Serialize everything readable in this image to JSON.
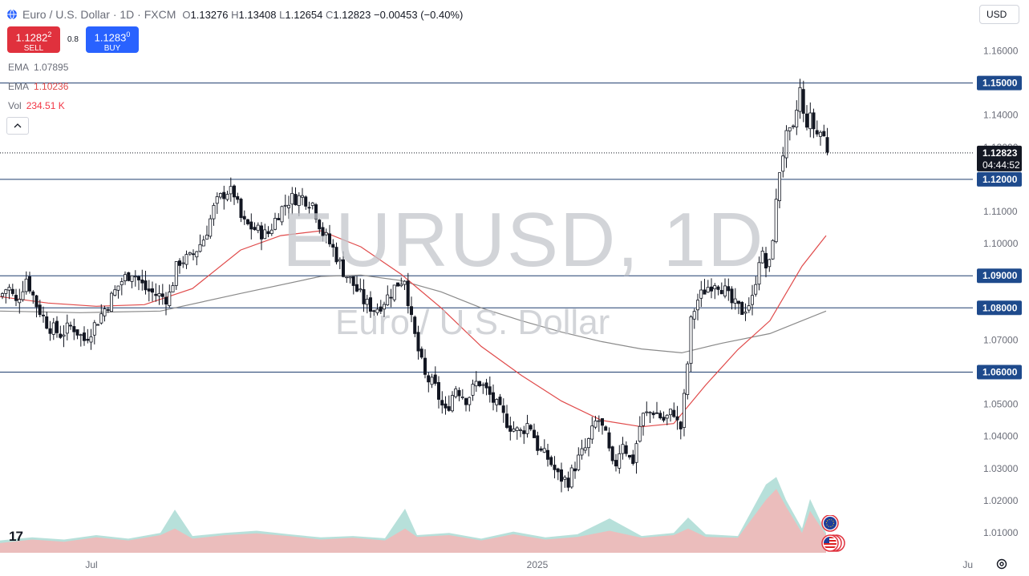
{
  "header": {
    "title": "Euro / U.S. Dollar · 1D · FXCM",
    "o_label": "O",
    "o": "1.13276",
    "h_label": "H",
    "h": "1.13408",
    "l_label": "L",
    "l": "1.12654",
    "c_label": "C",
    "c": "1.12823",
    "change": "−0.00453 (−0.40%)"
  },
  "trade": {
    "sell_price": "1.1282",
    "sell_sup": "2",
    "sell_label": "SELL",
    "spread": "0.8",
    "buy_price": "1.1283",
    "buy_sup": "0",
    "buy_label": "BUY"
  },
  "indicators": {
    "ema1_label": "EMA",
    "ema1_value": "1.07895",
    "ema2_label": "EMA",
    "ema2_value": "1.10236",
    "vol_label": "Vol",
    "vol_value": "234.51 K"
  },
  "currency_button": "USD",
  "watermark": {
    "symbol": "EURUSD, 1D",
    "name": "Euro / U.S. Dollar"
  },
  "logo_text": "17",
  "colors": {
    "up": "#131722",
    "down": "#131722",
    "ema_fast": "#e04a4a",
    "ema_slow": "#8a8a8a",
    "hline": "#1e3d6e",
    "label_bg": "#1e4a8c",
    "price_tag_bg": "#131722",
    "vol_up": "#aadbd4",
    "vol_down": "#f4b6b6"
  },
  "chart_data": {
    "type": "candlestick",
    "x_axis": {
      "ticks": [
        "Jul",
        "2025",
        "Ju"
      ]
    },
    "y_axis": {
      "range": [
        1.005,
        1.165
      ],
      "ticks": [
        "1.16000",
        "1.15000",
        "1.14000",
        "1.13000",
        "1.12000",
        "1.11000",
        "1.10000",
        "1.09000",
        "1.08000",
        "1.07000",
        "1.06000",
        "1.05000",
        "1.04000",
        "1.03000",
        "1.02000",
        "1.01000"
      ]
    },
    "horizontal_lines": [
      {
        "value": 1.15,
        "label": "1.15000"
      },
      {
        "value": 1.12,
        "label": "1.12000"
      },
      {
        "value": 1.09,
        "label": "1.09000"
      },
      {
        "value": 1.08,
        "label": "1.08000"
      },
      {
        "value": 1.06,
        "label": "1.06000"
      }
    ],
    "current_price": {
      "value": 1.12823,
      "label": "1.12823",
      "countdown": "04:44:52"
    },
    "ohlc_path_closes": [
      [
        0,
        1.0835
      ],
      [
        10,
        1.0868
      ],
      [
        20,
        1.0815
      ],
      [
        33,
        1.0895
      ],
      [
        45,
        1.0812
      ],
      [
        60,
        1.0745
      ],
      [
        75,
        1.0718
      ],
      [
        90,
        1.0745
      ],
      [
        105,
        1.07
      ],
      [
        120,
        1.0755
      ],
      [
        135,
        1.0815
      ],
      [
        150,
        1.088
      ],
      [
        165,
        1.0915
      ],
      [
        180,
        1.086
      ],
      [
        195,
        1.084
      ],
      [
        210,
        1.083
      ],
      [
        222,
        1.0945
      ],
      [
        238,
        1.0955
      ],
      [
        255,
        1.102
      ],
      [
        268,
        1.112
      ],
      [
        282,
        1.1165
      ],
      [
        292,
        1.1155
      ],
      [
        302,
        1.1065
      ],
      [
        318,
        1.1045
      ],
      [
        333,
        1.1025
      ],
      [
        348,
        1.11
      ],
      [
        362,
        1.114
      ],
      [
        377,
        1.1145
      ],
      [
        390,
        1.1125
      ],
      [
        402,
        1.1035
      ],
      [
        415,
        1.0985
      ],
      [
        428,
        1.0915
      ],
      [
        440,
        1.0875
      ],
      [
        455,
        1.0815
      ],
      [
        468,
        1.0795
      ],
      [
        482,
        1.083
      ],
      [
        495,
        1.0875
      ],
      [
        505,
        1.0895
      ],
      [
        512,
        1.077
      ],
      [
        520,
        1.068
      ],
      [
        530,
        1.0585
      ],
      [
        542,
        1.0555
      ],
      [
        555,
        1.047
      ],
      [
        568,
        1.0555
      ],
      [
        582,
        1.0515
      ],
      [
        596,
        1.0575
      ],
      [
        610,
        1.053
      ],
      [
        624,
        1.0475
      ],
      [
        635,
        1.0435
      ],
      [
        648,
        1.041
      ],
      [
        660,
        1.0445
      ],
      [
        672,
        1.0355
      ],
      [
        684,
        1.033
      ],
      [
        696,
        1.0275
      ],
      [
        708,
        1.026
      ],
      [
        720,
        1.0325
      ],
      [
        732,
        1.037
      ],
      [
        745,
        1.046
      ],
      [
        755,
        1.04
      ],
      [
        765,
        1.029
      ],
      [
        776,
        1.039
      ],
      [
        788,
        1.031
      ],
      [
        800,
        1.046
      ],
      [
        815,
        1.048
      ],
      [
        828,
        1.045
      ],
      [
        840,
        1.048
      ],
      [
        848,
        1.041
      ],
      [
        855,
        1.056
      ],
      [
        862,
        1.077
      ],
      [
        870,
        1.0825
      ],
      [
        880,
        1.086
      ],
      [
        892,
        1.0885
      ],
      [
        902,
        1.086
      ],
      [
        912,
        1.0815
      ],
      [
        925,
        1.079
      ],
      [
        938,
        1.0825
      ],
      [
        948,
        1.098
      ],
      [
        958,
        1.0905
      ],
      [
        966,
        1.108
      ],
      [
        972,
        1.123
      ],
      [
        980,
        1.133
      ],
      [
        990,
        1.135
      ],
      [
        997,
        1.149
      ],
      [
        1003,
        1.137
      ],
      [
        1010,
        1.139
      ],
      [
        1018,
        1.134
      ],
      [
        1025,
        1.135
      ],
      [
        1033,
        1.1282
      ]
    ],
    "ema_fast_points": [
      [
        0,
        1.0835
      ],
      [
        60,
        1.0815
      ],
      [
        120,
        1.0805
      ],
      [
        180,
        1.081
      ],
      [
        240,
        1.086
      ],
      [
        300,
        1.098
      ],
      [
        350,
        1.1025
      ],
      [
        400,
        1.104
      ],
      [
        450,
        1.099
      ],
      [
        500,
        1.0905
      ],
      [
        550,
        1.08
      ],
      [
        600,
        1.068
      ],
      [
        650,
        1.059
      ],
      [
        700,
        1.051
      ],
      [
        750,
        1.045
      ],
      [
        800,
        1.043
      ],
      [
        840,
        1.044
      ],
      [
        880,
        1.056
      ],
      [
        920,
        1.067
      ],
      [
        960,
        1.076
      ],
      [
        1000,
        1.093
      ],
      [
        1030,
        1.1025
      ]
    ],
    "ema_slow_points": [
      [
        0,
        1.079
      ],
      [
        100,
        1.0785
      ],
      [
        200,
        1.079
      ],
      [
        300,
        1.0845
      ],
      [
        400,
        1.0898
      ],
      [
        450,
        1.0902
      ],
      [
        500,
        1.0885
      ],
      [
        550,
        1.085
      ],
      [
        600,
        1.08
      ],
      [
        650,
        1.076
      ],
      [
        700,
        1.0725
      ],
      [
        750,
        1.0695
      ],
      [
        800,
        1.0672
      ],
      [
        850,
        1.066
      ],
      [
        900,
        1.069
      ],
      [
        960,
        1.072
      ],
      [
        1000,
        1.076
      ],
      [
        1030,
        1.079
      ]
    ],
    "volume_up_points": [
      [
        0,
        0.28
      ],
      [
        40,
        0.35
      ],
      [
        80,
        0.3
      ],
      [
        120,
        0.4
      ],
      [
        160,
        0.32
      ],
      [
        200,
        0.45
      ],
      [
        218,
        0.98
      ],
      [
        240,
        0.38
      ],
      [
        280,
        0.45
      ],
      [
        320,
        0.5
      ],
      [
        360,
        0.42
      ],
      [
        400,
        0.35
      ],
      [
        440,
        0.38
      ],
      [
        480,
        0.33
      ],
      [
        505,
        1.0
      ],
      [
        520,
        0.4
      ],
      [
        560,
        0.45
      ],
      [
        600,
        0.32
      ],
      [
        640,
        0.48
      ],
      [
        680,
        0.35
      ],
      [
        720,
        0.42
      ],
      [
        760,
        0.78
      ],
      [
        800,
        0.38
      ],
      [
        840,
        0.45
      ],
      [
        858,
        0.8
      ],
      [
        880,
        0.42
      ],
      [
        920,
        0.38
      ],
      [
        955,
        1.55
      ],
      [
        968,
        1.72
      ],
      [
        980,
        1.2
      ],
      [
        1000,
        0.55
      ],
      [
        1010,
        1.22
      ],
      [
        1030,
        0.45
      ]
    ],
    "volume_down_points": [
      [
        0,
        0.22
      ],
      [
        40,
        0.3
      ],
      [
        80,
        0.25
      ],
      [
        120,
        0.35
      ],
      [
        160,
        0.28
      ],
      [
        200,
        0.4
      ],
      [
        218,
        0.55
      ],
      [
        240,
        0.32
      ],
      [
        280,
        0.4
      ],
      [
        320,
        0.44
      ],
      [
        360,
        0.38
      ],
      [
        400,
        0.3
      ],
      [
        440,
        0.34
      ],
      [
        480,
        0.28
      ],
      [
        505,
        0.55
      ],
      [
        520,
        0.36
      ],
      [
        560,
        0.4
      ],
      [
        600,
        0.28
      ],
      [
        640,
        0.42
      ],
      [
        680,
        0.3
      ],
      [
        720,
        0.36
      ],
      [
        760,
        0.5
      ],
      [
        800,
        0.34
      ],
      [
        840,
        0.4
      ],
      [
        858,
        0.55
      ],
      [
        880,
        0.36
      ],
      [
        920,
        0.34
      ],
      [
        955,
        1.2
      ],
      [
        968,
        1.45
      ],
      [
        980,
        1.05
      ],
      [
        1000,
        0.45
      ],
      [
        1010,
        0.95
      ],
      [
        1030,
        0.4
      ]
    ]
  }
}
